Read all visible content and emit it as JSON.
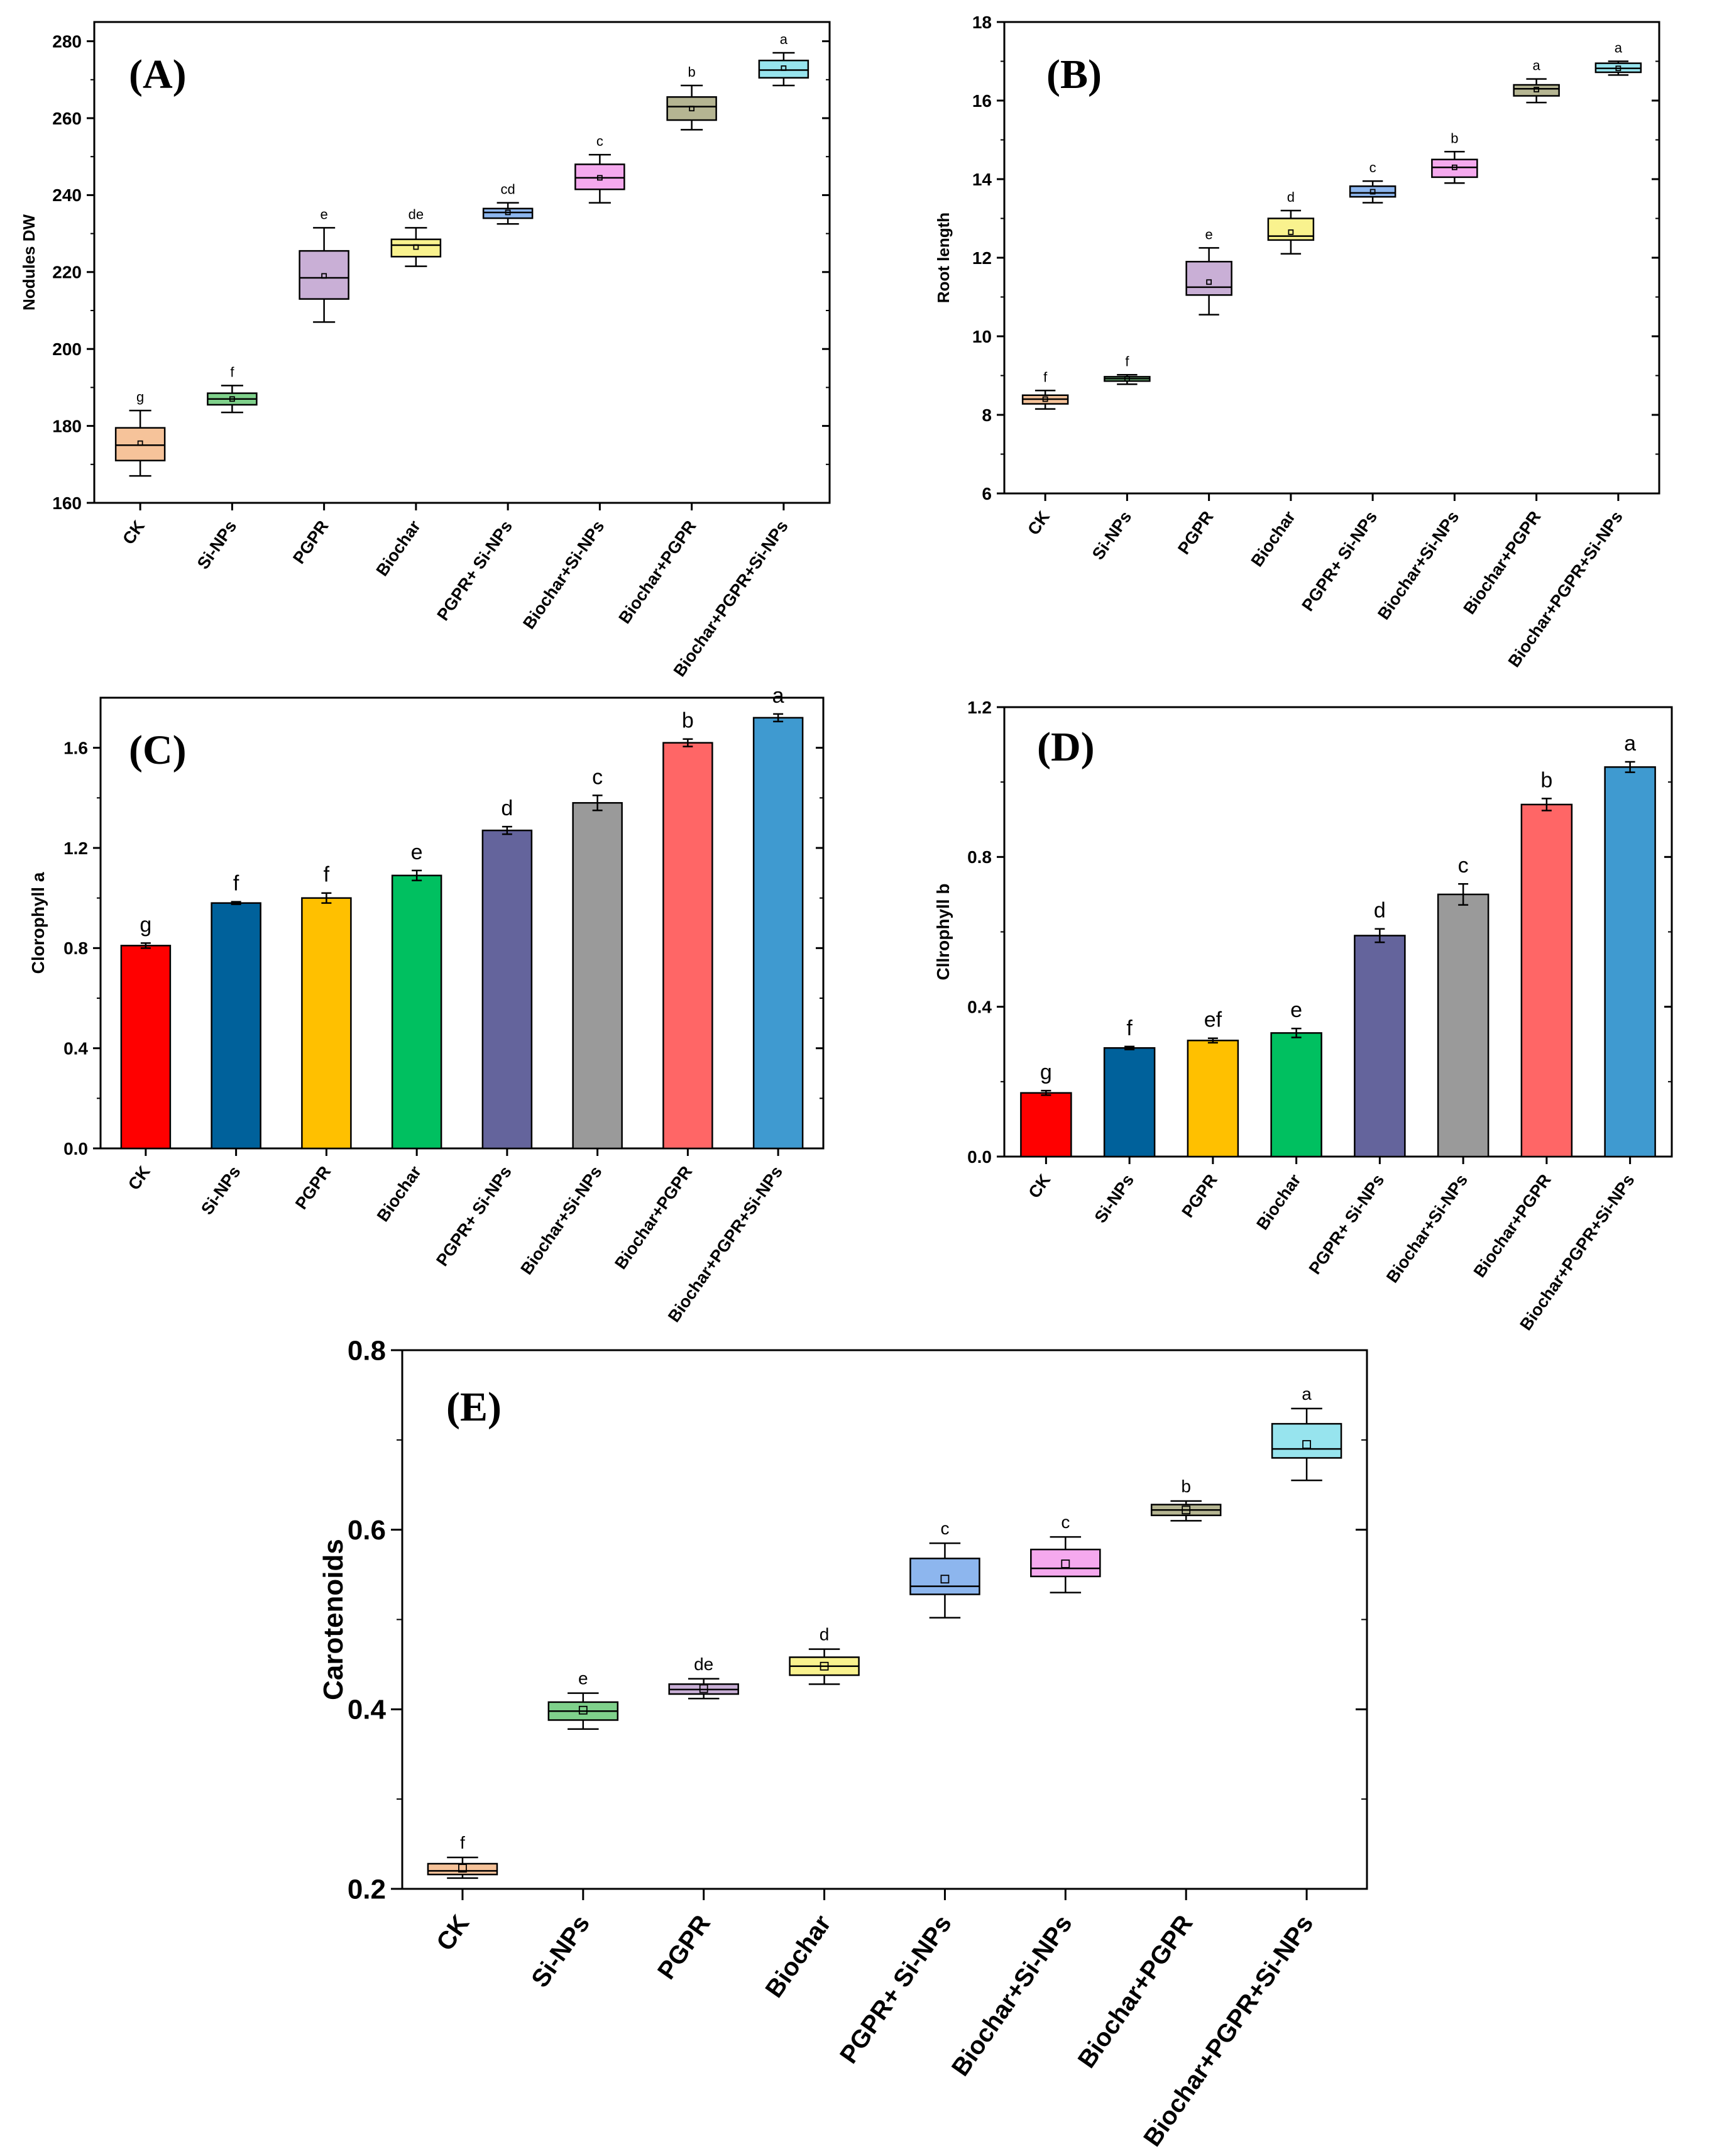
{
  "chart_data": [
    {
      "id": "A",
      "panel_label": "(A)",
      "type": "box",
      "title": "",
      "xlabel": "",
      "ylabel": "Nodules DW",
      "ylim": [
        160,
        285
      ],
      "yticks": [
        160,
        180,
        200,
        220,
        240,
        260,
        280
      ],
      "ytick_labels": [
        "160",
        "180",
        "200",
        "220",
        "240",
        "260",
        "280"
      ],
      "categories": [
        "CK",
        "Si-NPs",
        "PGPR",
        "Biochar",
        "PGPR+ Si-NPs",
        "Biochar+Si-NPs",
        "Biochar+PGPR",
        "Biochar+PGPR+Si-NPs"
      ],
      "boxes": [
        {
          "min": 167,
          "q1": 171,
          "median": 175,
          "q3": 179.5,
          "max": 184,
          "mean": 175.5,
          "letter": "g",
          "color": "#f6c39a"
        },
        {
          "min": 183.5,
          "q1": 185.5,
          "median": 187,
          "q3": 188.5,
          "max": 190.5,
          "mean": 187,
          "letter": "f",
          "color": "#7fd18b"
        },
        {
          "min": 207,
          "q1": 213,
          "median": 218.5,
          "q3": 225.5,
          "max": 231.5,
          "mean": 219,
          "letter": "e",
          "color": "#c9afd6"
        },
        {
          "min": 221.5,
          "q1": 224,
          "median": 227,
          "q3": 228.5,
          "max": 231.5,
          "mean": 226.5,
          "letter": "de",
          "color": "#f9f28e"
        },
        {
          "min": 232.5,
          "q1": 234,
          "median": 235.5,
          "q3": 236.5,
          "max": 238,
          "mean": 235.5,
          "letter": "cd",
          "color": "#8db6ee"
        },
        {
          "min": 238,
          "q1": 241.5,
          "median": 244.5,
          "q3": 248,
          "max": 250.5,
          "mean": 244.5,
          "letter": "c",
          "color": "#f5a9ee"
        },
        {
          "min": 257,
          "q1": 259.5,
          "median": 263,
          "q3": 265.5,
          "max": 268.5,
          "mean": 262.5,
          "letter": "b",
          "color": "#b5b592"
        },
        {
          "min": 268.5,
          "q1": 270.5,
          "median": 272.5,
          "q3": 275,
          "max": 277,
          "mean": 273,
          "letter": "a",
          "color": "#97e4ee"
        }
      ]
    },
    {
      "id": "B",
      "panel_label": "(B)",
      "type": "box",
      "title": "",
      "xlabel": "",
      "ylabel": "Root length",
      "ylim": [
        6,
        18
      ],
      "yticks": [
        6,
        8,
        10,
        12,
        14,
        16,
        18
      ],
      "ytick_labels": [
        "6",
        "8",
        "10",
        "12",
        "14",
        "16",
        "18"
      ],
      "categories": [
        "CK",
        "Si-NPs",
        "PGPR",
        "Biochar",
        "PGPR+ Si-NPs",
        "Biochar+Si-NPs",
        "Biochar+PGPR",
        "Biochar+PGPR+Si-NPs"
      ],
      "boxes": [
        {
          "min": 8.15,
          "q1": 8.28,
          "median": 8.4,
          "q3": 8.5,
          "max": 8.62,
          "mean": 8.4,
          "letter": "f",
          "color": "#f6c39a"
        },
        {
          "min": 8.78,
          "q1": 8.86,
          "median": 8.92,
          "q3": 8.97,
          "max": 9.02,
          "mean": 8.92,
          "letter": "f",
          "color": "#7fd18b"
        },
        {
          "min": 10.55,
          "q1": 11.05,
          "median": 11.25,
          "q3": 11.9,
          "max": 12.25,
          "mean": 11.38,
          "letter": "e",
          "color": "#c9afd6"
        },
        {
          "min": 12.1,
          "q1": 12.45,
          "median": 12.55,
          "q3": 13.0,
          "max": 13.2,
          "mean": 12.65,
          "letter": "d",
          "color": "#f9f28e"
        },
        {
          "min": 13.4,
          "q1": 13.55,
          "median": 13.65,
          "q3": 13.82,
          "max": 13.95,
          "mean": 13.68,
          "letter": "c",
          "color": "#8db6ee"
        },
        {
          "min": 13.9,
          "q1": 14.05,
          "median": 14.3,
          "q3": 14.5,
          "max": 14.7,
          "mean": 14.3,
          "letter": "b",
          "color": "#f5a9ee"
        },
        {
          "min": 15.95,
          "q1": 16.12,
          "median": 16.3,
          "q3": 16.4,
          "max": 16.55,
          "mean": 16.28,
          "letter": "a",
          "color": "#b5b592"
        },
        {
          "min": 16.65,
          "q1": 16.72,
          "median": 16.82,
          "q3": 16.95,
          "max": 17.0,
          "mean": 16.82,
          "letter": "a",
          "color": "#97e4ee"
        }
      ]
    },
    {
      "id": "C",
      "panel_label": "(C)",
      "type": "bar",
      "title": "",
      "xlabel": "",
      "ylabel": "Clorophyll a",
      "ylim": [
        0,
        1.8
      ],
      "yticks": [
        0,
        0.4,
        0.8,
        1.2,
        1.6
      ],
      "ytick_labels": [
        "0.0",
        "0.4",
        "0.8",
        "1.2",
        "1.6"
      ],
      "categories": [
        "CK",
        "Si-NPs",
        "PGPR",
        "Biochar",
        "PGPR+ Si-NPs",
        "Biochar+Si-NPs",
        "Biochar+PGPR",
        "Biochar+PGPR+Si-NPs"
      ],
      "values": [
        0.81,
        0.98,
        1.0,
        1.09,
        1.27,
        1.38,
        1.62,
        1.72
      ],
      "errors": [
        0.01,
        0.005,
        0.02,
        0.02,
        0.015,
        0.03,
        0.015,
        0.015
      ],
      "letters": [
        "g",
        "f",
        "f",
        "e",
        "d",
        "c",
        "b",
        "a"
      ],
      "colors": [
        "#ff0000",
        "#00619b",
        "#ffc000",
        "#00c060",
        "#64649c",
        "#9a9a9a",
        "#ff6666",
        "#3f9ad0"
      ]
    },
    {
      "id": "D",
      "panel_label": "(D)",
      "type": "bar",
      "title": "",
      "xlabel": "",
      "ylabel": "Cllrophyll b",
      "ylim": [
        0,
        1.2
      ],
      "yticks": [
        0,
        0.4,
        0.8,
        1.2
      ],
      "ytick_labels": [
        "0.0",
        "0.4",
        "0.8",
        "1.2"
      ],
      "categories": [
        "CK",
        "Si-NPs",
        "PGPR",
        "Biochar",
        "PGPR+ Si-NPs",
        "Biochar+Si-NPs",
        "Biochar+PGPR",
        "Biochar+PGPR+Si-NPs"
      ],
      "values": [
        0.17,
        0.29,
        0.31,
        0.33,
        0.59,
        0.7,
        0.94,
        1.04
      ],
      "errors": [
        0.006,
        0.004,
        0.006,
        0.012,
        0.018,
        0.028,
        0.016,
        0.014
      ],
      "letters": [
        "g",
        "f",
        "ef",
        "e",
        "d",
        "c",
        "b",
        "a"
      ],
      "colors": [
        "#ff0000",
        "#00619b",
        "#ffc000",
        "#00c060",
        "#64649c",
        "#9a9a9a",
        "#ff6666",
        "#3f9ad0"
      ]
    },
    {
      "id": "E",
      "panel_label": "(E)",
      "type": "box",
      "title": "",
      "xlabel": "",
      "ylabel": "Carotenoids",
      "ylim": [
        0.2,
        0.8
      ],
      "yticks": [
        0.2,
        0.4,
        0.6,
        0.8
      ],
      "ytick_labels": [
        "0.2",
        "0.4",
        "0.6",
        "0.8"
      ],
      "categories": [
        "CK",
        "Si-NPs",
        "PGPR",
        "Biochar",
        "PGPR+ Si-NPs",
        "Biochar+Si-NPs",
        "Biochar+PGPR",
        "Biochar+PGPR+Si-NPs"
      ],
      "boxes": [
        {
          "min": 0.212,
          "q1": 0.216,
          "median": 0.22,
          "q3": 0.228,
          "max": 0.235,
          "mean": 0.223,
          "letter": "f",
          "color": "#f6c39a"
        },
        {
          "min": 0.378,
          "q1": 0.388,
          "median": 0.398,
          "q3": 0.408,
          "max": 0.418,
          "mean": 0.399,
          "letter": "e",
          "color": "#7fd18b"
        },
        {
          "min": 0.412,
          "q1": 0.417,
          "median": 0.422,
          "q3": 0.428,
          "max": 0.434,
          "mean": 0.423,
          "letter": "de",
          "color": "#c9afd6"
        },
        {
          "min": 0.428,
          "q1": 0.438,
          "median": 0.448,
          "q3": 0.458,
          "max": 0.467,
          "mean": 0.448,
          "letter": "d",
          "color": "#f9f28e"
        },
        {
          "min": 0.502,
          "q1": 0.528,
          "median": 0.537,
          "q3": 0.568,
          "max": 0.585,
          "mean": 0.545,
          "letter": "c",
          "color": "#8db6ee"
        },
        {
          "min": 0.53,
          "q1": 0.548,
          "median": 0.557,
          "q3": 0.578,
          "max": 0.592,
          "mean": 0.562,
          "letter": "c",
          "color": "#f5a9ee"
        },
        {
          "min": 0.61,
          "q1": 0.616,
          "median": 0.622,
          "q3": 0.628,
          "max": 0.632,
          "mean": 0.622,
          "letter": "b",
          "color": "#b5b592"
        },
        {
          "min": 0.655,
          "q1": 0.68,
          "median": 0.69,
          "q3": 0.718,
          "max": 0.735,
          "mean": 0.695,
          "letter": "a",
          "color": "#97e4ee"
        }
      ]
    }
  ]
}
